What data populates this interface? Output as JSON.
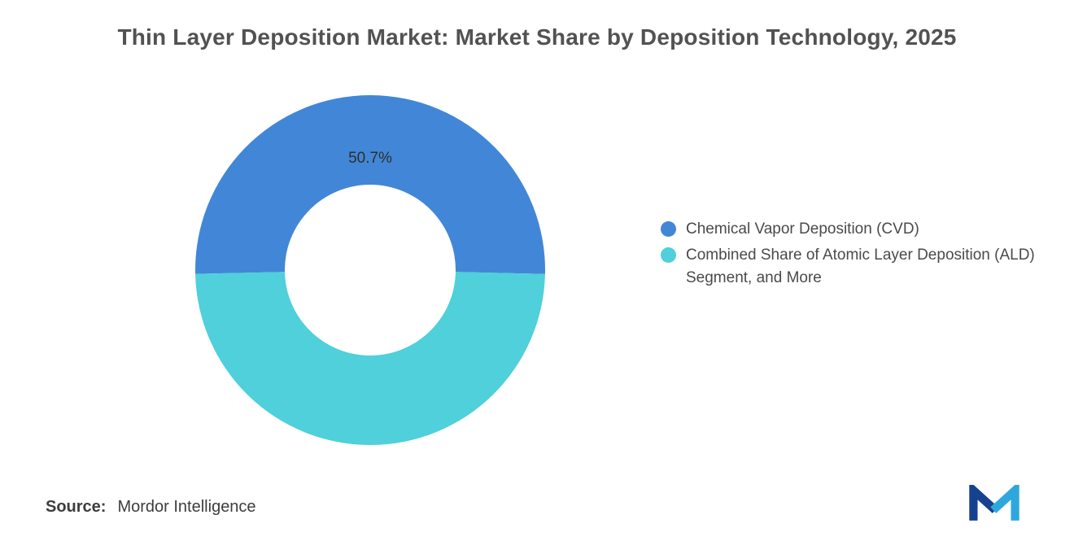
{
  "title": "Thin Layer Deposition Market: Market Share by Deposition Technology, 2025",
  "source": {
    "label": "Source:",
    "value": "Mordor Intelligence"
  },
  "logo": {
    "name": "mordor-intelligence-logo",
    "color_dark": "#16418f",
    "color_light": "#2ea8dc"
  },
  "chart_data": {
    "type": "pie",
    "subtype": "donut",
    "title": "Thin Layer Deposition Market: Market Share by Deposition Technology, 2025",
    "legend_position": "right",
    "start_angle_deg": 178.74,
    "inner_radius_ratio": 0.49,
    "series": [
      {
        "name": "Chemical Vapor Deposition (CVD)",
        "value": 50.7,
        "label": "50.7%",
        "color": "#4287d7"
      },
      {
        "name": "Combined Share of Atomic Layer Deposition (ALD) Segment, and More",
        "value": 49.3,
        "label": "",
        "color": "#4fd0da"
      }
    ]
  }
}
